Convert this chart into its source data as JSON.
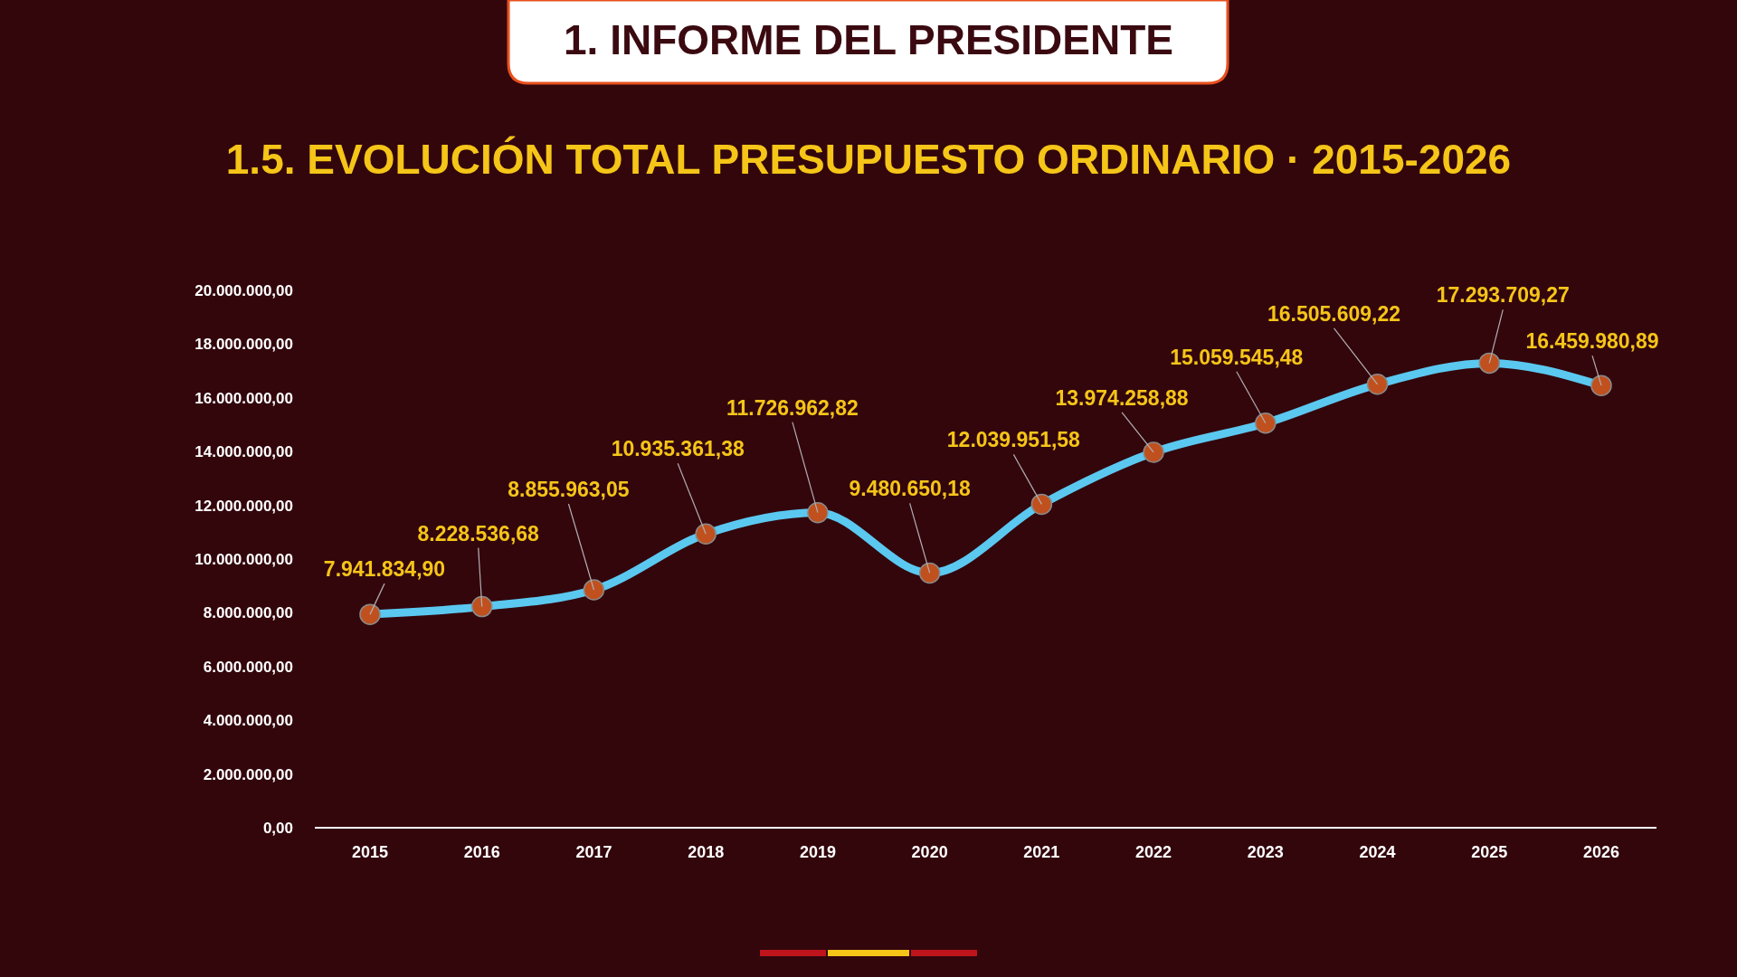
{
  "chart_data": {
    "type": "line",
    "title": "1. INFORME DEL PRESIDENTE",
    "subtitle": "1.5. EVOLUCIÓN TOTAL PRESUPUESTO ORDINARIO · 2015-2026",
    "categories": [
      "2015",
      "2016",
      "2017",
      "2018",
      "2019",
      "2020",
      "2021",
      "2022",
      "2023",
      "2024",
      "2025",
      "2026"
    ],
    "series": [
      {
        "color": "#5bc8f0",
        "values": [
          7941834.9,
          8228536.68,
          8855963.05,
          10935361.38,
          11726962.82,
          9480650.18,
          12039951.58,
          13974258.88,
          15059545.48,
          16505609.22,
          17293709.27,
          16459980.89
        ],
        "value_labels": [
          "7.941.834,90",
          "8.228.536,68",
          "8.855.963,05",
          "10.935.361,38",
          "11.726.962,82",
          "9.480.650,18",
          "12.039.951,58",
          "13.974.258,88",
          "15.059.545,48",
          "16.505.609,22",
          "17.293.709,27",
          "16.459.980,89"
        ]
      }
    ],
    "ylim": [
      0,
      20000000
    ],
    "yticks": [
      {
        "value": 0,
        "label": "0,00"
      },
      {
        "value": 2000000,
        "label": "2.000.000,00"
      },
      {
        "value": 4000000,
        "label": "4.000.000,00"
      },
      {
        "value": 6000000,
        "label": "6.000.000,00"
      },
      {
        "value": 8000000,
        "label": "8.000.000,00"
      },
      {
        "value": 10000000,
        "label": "10.000.000,00"
      },
      {
        "value": 12000000,
        "label": "12.000.000,00"
      },
      {
        "value": 14000000,
        "label": "14.000.000,00"
      },
      {
        "value": 16000000,
        "label": "16.000.000,00"
      },
      {
        "value": 18000000,
        "label": "18.000.000,00"
      },
      {
        "value": 20000000,
        "label": "20.000.000,00"
      }
    ],
    "marker": "circle",
    "line_style": "solid"
  }
}
